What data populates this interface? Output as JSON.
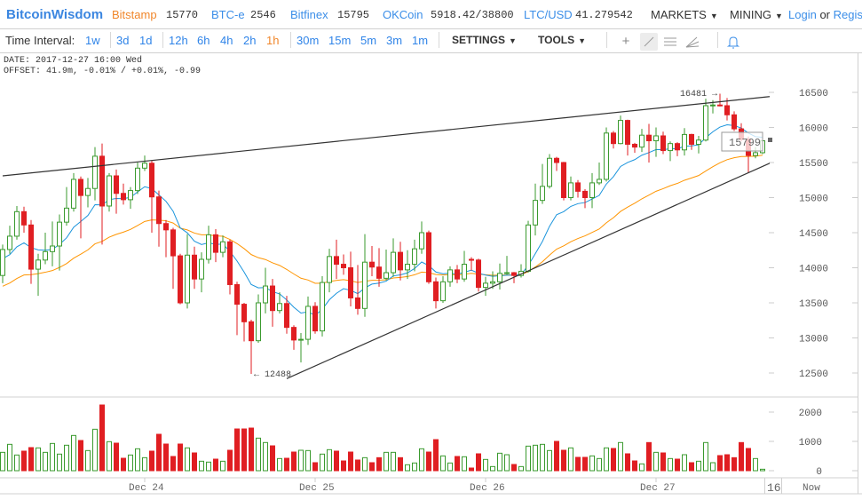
{
  "header": {
    "logo": "BitcoinWisdom",
    "exchanges": [
      {
        "name": "Bitstamp",
        "price": "15770",
        "active": true
      },
      {
        "name": "BTC-e",
        "price": "2546"
      },
      {
        "name": "Bitfinex",
        "price": "15795"
      },
      {
        "name": "OKCoin",
        "price": "5918.42/38800"
      },
      {
        "name": "LTC/USD",
        "price": "41.279542"
      }
    ],
    "menus": [
      "MARKETS",
      "MINING"
    ],
    "login": "Login",
    "or": "or",
    "register": "Register"
  },
  "toolbar": {
    "label": "Time Interval:",
    "intervals": [
      "1w",
      "3d",
      "1d",
      "12h",
      "6h",
      "4h",
      "2h",
      "1h",
      "30m",
      "15m",
      "5m",
      "3m",
      "1m"
    ],
    "selected": "1h",
    "settings": "SETTINGS",
    "tools": "TOOLS",
    "tool_icons": [
      "crosshair-icon",
      "trendline-icon",
      "horizontal-lines-icon",
      "fork-icon",
      "bell-icon"
    ],
    "active_tool": "trendline-icon"
  },
  "info": {
    "date": "DATE: 2017-12-27 16:00 Wed",
    "offset": "OFFSET: 41.9m, -0.01% / +0.01%, -0.99"
  },
  "colors": {
    "up": "#3a9a2e",
    "down": "#e01e22",
    "ma_fast": "#1a94dc",
    "ma_slow": "#ff9500",
    "accent": "#3b8ee8",
    "selected": "#f0862a"
  },
  "chart_data": {
    "type": "candlestick",
    "interval": "1h",
    "start": "2017-12-23 04:00",
    "price_ticks": [
      16500,
      16000,
      15500,
      15000,
      14500,
      14000,
      13500,
      13000,
      12500
    ],
    "volume_ticks": [
      2000,
      1000,
      0
    ],
    "x_labels": [
      "Dec 24",
      "Dec 25",
      "Dec 26",
      "Dec 27"
    ],
    "x_label_times": [
      "2017-12-24 00:00",
      "2017-12-25 00:00",
      "2017-12-26 00:00",
      "2017-12-27 00:00"
    ],
    "axis_extra": [
      "16",
      "Now"
    ],
    "high_label": "16481 →",
    "low_label": "← 12488",
    "last_price": "15799",
    "trendlines": [
      {
        "from": [
          "2017-12-23 04:00",
          15310
        ],
        "to": [
          "2017-12-27 16:00",
          16440
        ]
      },
      {
        "from": [
          "2017-12-24 20:00",
          12420
        ],
        "to": [
          "2017-12-27 16:00",
          15490
        ]
      }
    ],
    "ohlc": [
      [
        13890,
        14330,
        13780,
        14260
      ],
      [
        14260,
        14600,
        14200,
        14450
      ],
      [
        14450,
        14880,
        14400,
        14800
      ],
      [
        14800,
        14870,
        14500,
        14610
      ],
      [
        14610,
        14680,
        13770,
        13980
      ],
      [
        13980,
        14200,
        13600,
        14110
      ],
      [
        14110,
        14500,
        14050,
        14230
      ],
      [
        14230,
        14660,
        14020,
        14310
      ],
      [
        14310,
        14760,
        13960,
        14650
      ],
      [
        14650,
        15150,
        14600,
        14850
      ],
      [
        14850,
        15350,
        14800,
        15260
      ],
      [
        15260,
        15300,
        14420,
        15030
      ],
      [
        15030,
        15280,
        14860,
        15130
      ],
      [
        15130,
        15720,
        14960,
        15590
      ],
      [
        15590,
        15770,
        14330,
        14880
      ],
      [
        14880,
        15350,
        14800,
        15310
      ],
      [
        15310,
        15400,
        14770,
        15060
      ],
      [
        15060,
        15200,
        14900,
        14970
      ],
      [
        14970,
        15150,
        14840,
        15100
      ],
      [
        15100,
        15500,
        15050,
        15420
      ],
      [
        15420,
        15600,
        15380,
        15490
      ],
      [
        15490,
        15530,
        14500,
        15010
      ],
      [
        15010,
        15100,
        14300,
        14630
      ],
      [
        14630,
        14680,
        14150,
        14540
      ],
      [
        14540,
        14570,
        13700,
        14170
      ],
      [
        14170,
        14200,
        13480,
        13500
      ],
      [
        13500,
        14480,
        13420,
        14180
      ],
      [
        14180,
        14300,
        13700,
        13840
      ],
      [
        13840,
        14220,
        13650,
        14120
      ],
      [
        14120,
        14600,
        14060,
        14470
      ],
      [
        14470,
        14550,
        14080,
        14220
      ],
      [
        14220,
        14460,
        14150,
        14370
      ],
      [
        14370,
        14400,
        13620,
        13760
      ],
      [
        13760,
        13800,
        13040,
        13480
      ],
      [
        13480,
        13500,
        12950,
        13230
      ],
      [
        13230,
        13260,
        12488,
        12960
      ],
      [
        12960,
        13620,
        12930,
        13500
      ],
      [
        13500,
        14000,
        13350,
        13740
      ],
      [
        13740,
        13840,
        13160,
        13390
      ],
      [
        13390,
        13650,
        13350,
        13490
      ],
      [
        13490,
        13600,
        13060,
        13150
      ],
      [
        13150,
        13180,
        12830,
        12970
      ],
      [
        12970,
        13070,
        12650,
        12980
      ],
      [
        12980,
        13590,
        12900,
        13450
      ],
      [
        13450,
        13510,
        13060,
        13100
      ],
      [
        13100,
        13880,
        13020,
        13790
      ],
      [
        13790,
        14270,
        13650,
        14160
      ],
      [
        14160,
        14400,
        13840,
        14050
      ],
      [
        14050,
        14190,
        13900,
        14000
      ],
      [
        14000,
        14230,
        13450,
        13570
      ],
      [
        13570,
        14040,
        13330,
        13420
      ],
      [
        13420,
        14480,
        13300,
        14080
      ],
      [
        14080,
        14310,
        13880,
        14010
      ],
      [
        14010,
        14280,
        13730,
        13850
      ],
      [
        13850,
        14260,
        13820,
        13930
      ],
      [
        13930,
        14420,
        13870,
        14220
      ],
      [
        14220,
        14370,
        13820,
        13970
      ],
      [
        13970,
        14250,
        13840,
        14050
      ],
      [
        14050,
        14400,
        13950,
        14270
      ],
      [
        14270,
        14660,
        14200,
        14500
      ],
      [
        14500,
        14530,
        13770,
        13800
      ],
      [
        13800,
        13860,
        13420,
        13530
      ],
      [
        13530,
        13880,
        13500,
        13800
      ],
      [
        13800,
        14020,
        13730,
        13970
      ],
      [
        13970,
        14040,
        13780,
        13840
      ],
      [
        13840,
        14240,
        13800,
        14050
      ],
      [
        14120,
        14150,
        13960,
        14110
      ],
      [
        14110,
        14130,
        13660,
        13720
      ],
      [
        13720,
        13870,
        13600,
        13780
      ],
      [
        13780,
        13950,
        13700,
        13800
      ],
      [
        13800,
        14060,
        13690,
        13920
      ],
      [
        13920,
        14170,
        13900,
        13930
      ],
      [
        13930,
        13940,
        13780,
        13890
      ],
      [
        13890,
        14050,
        13860,
        13950
      ],
      [
        13950,
        14670,
        13930,
        14610
      ],
      [
        14610,
        15200,
        14460,
        14960
      ],
      [
        14960,
        15480,
        14910,
        15160
      ],
      [
        15160,
        15620,
        15130,
        15560
      ],
      [
        15560,
        15580,
        15380,
        15500
      ],
      [
        15500,
        15510,
        14960,
        15000
      ],
      [
        15000,
        15300,
        14960,
        15210
      ],
      [
        15210,
        15250,
        15000,
        15090
      ],
      [
        15090,
        15120,
        14850,
        15000
      ],
      [
        15000,
        15350,
        14850,
        15210
      ],
      [
        15210,
        15500,
        15180,
        15260
      ],
      [
        15260,
        16000,
        15230,
        15920
      ],
      [
        15920,
        15950,
        15700,
        15770
      ],
      [
        15770,
        16170,
        15760,
        16100
      ],
      [
        16100,
        16110,
        15600,
        15760
      ],
      [
        15760,
        15780,
        15640,
        15720
      ],
      [
        15720,
        15980,
        15650,
        15890
      ],
      [
        15890,
        16050,
        15500,
        15810
      ],
      [
        15810,
        16000,
        15580,
        15880
      ],
      [
        15880,
        15940,
        15620,
        15670
      ],
      [
        15670,
        15800,
        15520,
        15770
      ],
      [
        15770,
        15790,
        15590,
        15680
      ],
      [
        15680,
        15990,
        15600,
        15900
      ],
      [
        15900,
        15910,
        15680,
        15760
      ],
      [
        15760,
        15880,
        15630,
        15820
      ],
      [
        15820,
        16410,
        15800,
        16310
      ],
      [
        16310,
        16390,
        16200,
        16320
      ],
      [
        16320,
        16481,
        16300,
        16310
      ],
      [
        16310,
        16420,
        16100,
        16180
      ],
      [
        16180,
        16230,
        15950,
        15980
      ],
      [
        15980,
        16060,
        15800,
        15830
      ],
      [
        15830,
        15870,
        15360,
        15600
      ],
      [
        15600,
        15720,
        15560,
        15640
      ],
      [
        15640,
        15830,
        15620,
        15810
      ]
    ],
    "volume": [
      626,
      899,
      535,
      667,
      788,
      778,
      626,
      929,
      566,
      869,
      1202,
      1030,
      687,
      1414,
      2242,
      990,
      939,
      424,
      535,
      747,
      444,
      667,
      1242,
      909,
      485,
      909,
      778,
      606,
      323,
      293,
      394,
      323,
      697,
      1424,
      1424,
      1454,
      1111,
      960,
      848,
      414,
      424,
      636,
      697,
      687,
      273,
      566,
      717,
      667,
      333,
      636,
      364,
      444,
      273,
      444,
      626,
      626,
      444,
      202,
      263,
      747,
      636,
      1060,
      505,
      263,
      485,
      475,
      91,
      576,
      384,
      141,
      596,
      545,
      212,
      141,
      838,
      869,
      899,
      687,
      1000,
      697,
      778,
      455,
      455,
      505,
      414,
      778,
      758,
      960,
      576,
      333,
      232,
      960,
      626,
      606,
      414,
      394,
      545,
      273,
      323,
      960,
      273,
      515,
      545,
      444,
      960,
      758,
      414,
      50
    ]
  }
}
